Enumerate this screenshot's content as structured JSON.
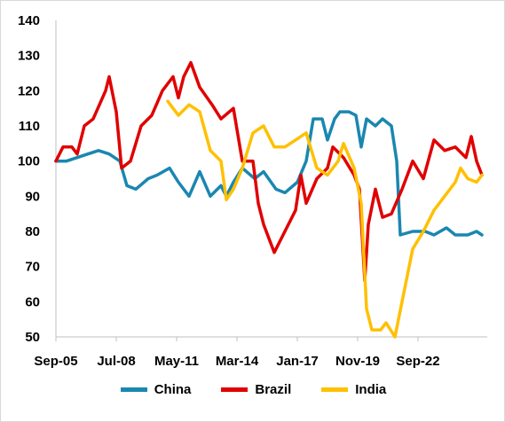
{
  "chart_data": {
    "type": "line",
    "title": "",
    "xlabel": "",
    "ylabel": "",
    "ylim": [
      50,
      140
    ],
    "yticks": [
      50,
      60,
      70,
      80,
      90,
      100,
      110,
      120,
      130,
      140
    ],
    "xticks": [
      "Sep-05",
      "Jul-08",
      "May-11",
      "Mar-14",
      "Jan-17",
      "Nov-19",
      "Sep-22"
    ],
    "xrange": [
      "2005-09",
      "2025-12"
    ],
    "grid": false,
    "legend": "bottom",
    "series": [
      {
        "name": "China",
        "color": "#1a87b0",
        "points": [
          [
            "2005-09",
            100
          ],
          [
            "2006-03",
            100
          ],
          [
            "2006-09",
            101
          ],
          [
            "2007-03",
            102
          ],
          [
            "2007-09",
            103
          ],
          [
            "2008-03",
            102
          ],
          [
            "2008-09",
            100
          ],
          [
            "2009-01",
            93
          ],
          [
            "2009-06",
            92
          ],
          [
            "2010-01",
            95
          ],
          [
            "2010-06",
            96
          ],
          [
            "2011-01",
            98
          ],
          [
            "2011-06",
            94
          ],
          [
            "2011-12",
            90
          ],
          [
            "2012-06",
            97
          ],
          [
            "2012-12",
            90
          ],
          [
            "2013-06",
            93
          ],
          [
            "2013-09",
            90
          ],
          [
            "2014-01",
            94
          ],
          [
            "2014-06",
            98
          ],
          [
            "2015-01",
            95
          ],
          [
            "2015-06",
            97
          ],
          [
            "2016-01",
            92
          ],
          [
            "2016-06",
            91
          ],
          [
            "2017-01",
            94
          ],
          [
            "2017-06",
            100
          ],
          [
            "2017-10",
            112
          ],
          [
            "2018-03",
            112
          ],
          [
            "2018-06",
            106
          ],
          [
            "2018-10",
            112
          ],
          [
            "2019-01",
            114
          ],
          [
            "2019-06",
            114
          ],
          [
            "2019-10",
            113
          ],
          [
            "2020-01",
            104
          ],
          [
            "2020-04",
            112
          ],
          [
            "2020-09",
            110
          ],
          [
            "2021-01",
            112
          ],
          [
            "2021-06",
            110
          ],
          [
            "2021-09",
            100
          ],
          [
            "2021-11",
            79
          ],
          [
            "2022-06",
            80
          ],
          [
            "2023-01",
            80
          ],
          [
            "2023-06",
            79
          ],
          [
            "2024-01",
            81
          ],
          [
            "2024-06",
            79
          ],
          [
            "2025-01",
            79
          ],
          [
            "2025-06",
            80
          ],
          [
            "2025-09",
            79
          ]
        ]
      },
      {
        "name": "Brazil",
        "color": "#e00000",
        "points": [
          [
            "2005-09",
            100
          ],
          [
            "2006-01",
            104
          ],
          [
            "2006-06",
            104
          ],
          [
            "2006-09",
            102
          ],
          [
            "2007-01",
            110
          ],
          [
            "2007-06",
            112
          ],
          [
            "2008-01",
            120
          ],
          [
            "2008-03",
            124
          ],
          [
            "2008-07",
            114
          ],
          [
            "2008-10",
            98
          ],
          [
            "2009-03",
            100
          ],
          [
            "2009-09",
            110
          ],
          [
            "2010-03",
            113
          ],
          [
            "2010-09",
            120
          ],
          [
            "2011-03",
            124
          ],
          [
            "2011-06",
            118
          ],
          [
            "2011-09",
            124
          ],
          [
            "2012-01",
            128
          ],
          [
            "2012-06",
            121
          ],
          [
            "2013-01",
            116
          ],
          [
            "2013-06",
            112
          ],
          [
            "2014-01",
            115
          ],
          [
            "2014-06",
            100
          ],
          [
            "2014-12",
            100
          ],
          [
            "2015-03",
            88
          ],
          [
            "2015-06",
            82
          ],
          [
            "2015-12",
            74
          ],
          [
            "2016-06",
            80
          ],
          [
            "2016-12",
            86
          ],
          [
            "2017-03",
            96
          ],
          [
            "2017-06",
            88
          ],
          [
            "2017-12",
            95
          ],
          [
            "2018-06",
            98
          ],
          [
            "2018-09",
            104
          ],
          [
            "2019-03",
            101
          ],
          [
            "2019-09",
            96
          ],
          [
            "2019-12",
            92
          ],
          [
            "2020-03",
            66
          ],
          [
            "2020-05",
            82
          ],
          [
            "2020-09",
            92
          ],
          [
            "2021-01",
            84
          ],
          [
            "2021-06",
            85
          ],
          [
            "2021-12",
            92
          ],
          [
            "2022-06",
            100
          ],
          [
            "2022-12",
            95
          ],
          [
            "2023-06",
            106
          ],
          [
            "2023-12",
            103
          ],
          [
            "2024-06",
            104
          ],
          [
            "2024-12",
            101
          ],
          [
            "2025-03",
            107
          ],
          [
            "2025-06",
            100
          ],
          [
            "2025-09",
            96
          ]
        ]
      },
      {
        "name": "India",
        "color": "#ffc000",
        "points": [
          [
            "2010-12",
            117
          ],
          [
            "2011-06",
            113
          ],
          [
            "2011-12",
            116
          ],
          [
            "2012-06",
            114
          ],
          [
            "2012-12",
            103
          ],
          [
            "2013-06",
            100
          ],
          [
            "2013-09",
            89
          ],
          [
            "2014-01",
            92
          ],
          [
            "2014-06",
            98
          ],
          [
            "2014-12",
            108
          ],
          [
            "2015-06",
            110
          ],
          [
            "2015-12",
            104
          ],
          [
            "2016-06",
            104
          ],
          [
            "2016-12",
            106
          ],
          [
            "2017-06",
            108
          ],
          [
            "2017-12",
            98
          ],
          [
            "2018-06",
            96
          ],
          [
            "2018-12",
            100
          ],
          [
            "2019-03",
            105
          ],
          [
            "2019-09",
            98
          ],
          [
            "2020-01",
            88
          ],
          [
            "2020-04",
            58
          ],
          [
            "2020-07",
            52
          ],
          [
            "2020-12",
            52
          ],
          [
            "2021-03",
            54
          ],
          [
            "2021-08",
            50
          ],
          [
            "2021-12",
            60
          ],
          [
            "2022-06",
            75
          ],
          [
            "2022-12",
            80
          ],
          [
            "2023-06",
            86
          ],
          [
            "2023-12",
            90
          ],
          [
            "2024-06",
            94
          ],
          [
            "2024-09",
            98
          ],
          [
            "2025-01",
            95
          ],
          [
            "2025-06",
            94
          ],
          [
            "2025-09",
            96
          ]
        ]
      }
    ]
  }
}
